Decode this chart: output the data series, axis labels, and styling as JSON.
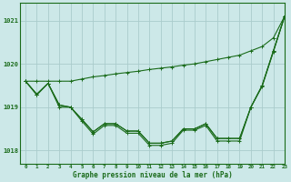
{
  "title": "Graphe pression niveau de la mer (hPa)",
  "bg_color": "#cce8e8",
  "grid_color": "#aacccc",
  "line_color": "#1a6b1a",
  "xlim": [
    -0.5,
    23
  ],
  "ylim": [
    1017.7,
    1021.4
  ],
  "yticks": [
    1018,
    1019,
    1020,
    1021
  ],
  "xticks": [
    0,
    1,
    2,
    3,
    4,
    5,
    6,
    7,
    8,
    9,
    10,
    11,
    12,
    13,
    14,
    15,
    16,
    17,
    18,
    19,
    20,
    21,
    22,
    23
  ],
  "series": [
    [
      1019.6,
      1019.3,
      1019.55,
      1019.05,
      1019.0,
      1018.72,
      1018.43,
      1018.62,
      1018.62,
      1018.45,
      1018.45,
      1018.17,
      1018.17,
      1018.22,
      1018.5,
      1018.5,
      1018.62,
      1018.28,
      1018.28,
      1018.28,
      1019.0,
      1019.5,
      1020.3,
      1021.1
    ],
    [
      1019.6,
      1019.3,
      1019.55,
      1019.05,
      1019.0,
      1018.72,
      1018.43,
      1018.62,
      1018.62,
      1018.45,
      1018.45,
      1018.17,
      1018.17,
      1018.22,
      1018.5,
      1018.5,
      1018.62,
      1018.28,
      1018.28,
      1018.28,
      1019.0,
      1019.5,
      1020.3,
      1021.1
    ],
    [
      1019.6,
      1019.28,
      1019.55,
      1019.0,
      1019.0,
      1018.68,
      1018.38,
      1018.58,
      1018.58,
      1018.4,
      1018.4,
      1018.12,
      1018.12,
      1018.17,
      1018.47,
      1018.47,
      1018.58,
      1018.22,
      1018.22,
      1018.22,
      1019.0,
      1019.48,
      1020.28,
      1021.1
    ],
    [
      1019.6,
      1019.6,
      1019.6,
      1019.6,
      1019.6,
      1019.65,
      1019.7,
      1019.73,
      1019.77,
      1019.8,
      1019.83,
      1019.87,
      1019.9,
      1019.93,
      1019.97,
      1020.0,
      1020.05,
      1020.1,
      1020.15,
      1020.2,
      1020.3,
      1020.4,
      1020.6,
      1021.1
    ]
  ]
}
